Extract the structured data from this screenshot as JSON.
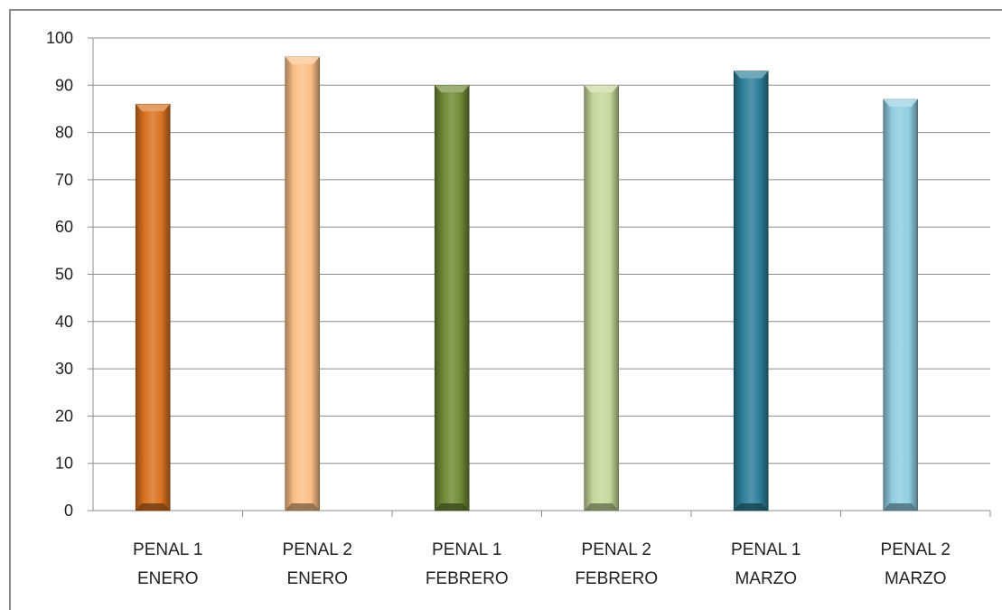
{
  "chart_data": {
    "type": "bar",
    "categories": [
      [
        "PENAL 1",
        "ENERO"
      ],
      [
        "PENAL 2",
        "ENERO"
      ],
      [
        "PENAL 1",
        "FEBRERO"
      ],
      [
        "PENAL 2",
        "FEBRERO"
      ],
      [
        "PENAL 1",
        "MARZO"
      ],
      [
        "PENAL 2",
        "MARZO"
      ]
    ],
    "values": [
      86,
      96,
      90,
      90,
      93,
      87
    ],
    "bar_colors": [
      "#d9711f",
      "#fbbf86",
      "#6e8a35",
      "#c5d89a",
      "#2d7f99",
      "#90cde2"
    ],
    "title": "",
    "xlabel": "",
    "ylabel": "",
    "ylim": [
      0,
      100
    ],
    "yticks": [
      0,
      10,
      20,
      30,
      40,
      50,
      60,
      70,
      80,
      90,
      100
    ],
    "grid": true,
    "legend": "none"
  }
}
